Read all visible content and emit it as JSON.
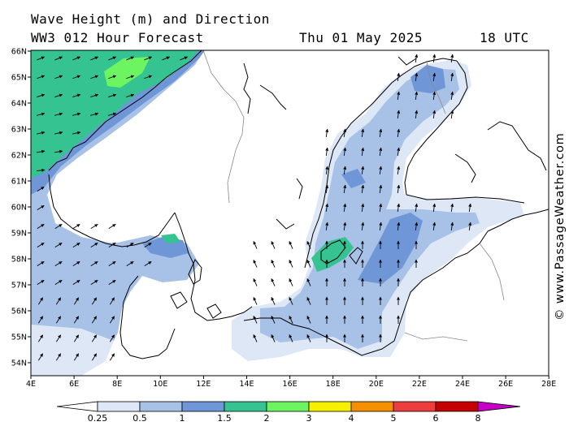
{
  "header": {
    "line1": "Wave Height (m) and Direction",
    "line2": "WW3 012 Hour Forecast",
    "date": "Thu 01 May 2025",
    "time": "18 UTC"
  },
  "map": {
    "region": "Baltic Sea / North Sea",
    "lon_range": [
      4,
      28
    ],
    "lat_range": [
      53.7,
      66
    ],
    "lat_ticks": [
      "54N",
      "55N",
      "56N",
      "57N",
      "58N",
      "59N",
      "60N",
      "61N",
      "62N",
      "63N",
      "64N",
      "65N",
      "66N"
    ],
    "lon_ticks": [
      "4E",
      "6E",
      "8E",
      "10E",
      "12E",
      "14E",
      "16E",
      "18E",
      "20E",
      "22E",
      "24E",
      "26E",
      "28E"
    ]
  },
  "legend": {
    "labels": [
      "0.25",
      "0.5",
      "1",
      "1.5",
      "2",
      "3",
      "4",
      "5",
      "6",
      "8"
    ],
    "colors": [
      "#ffffff",
      "#dde7f6",
      "#a8c1e6",
      "#6f97d8",
      "#35c391",
      "#6cf560",
      "#f5ef00",
      "#f59000",
      "#ee3d3d",
      "#c40000",
      "#c700c7"
    ]
  },
  "credit": "© www.PassageWeather.com"
}
